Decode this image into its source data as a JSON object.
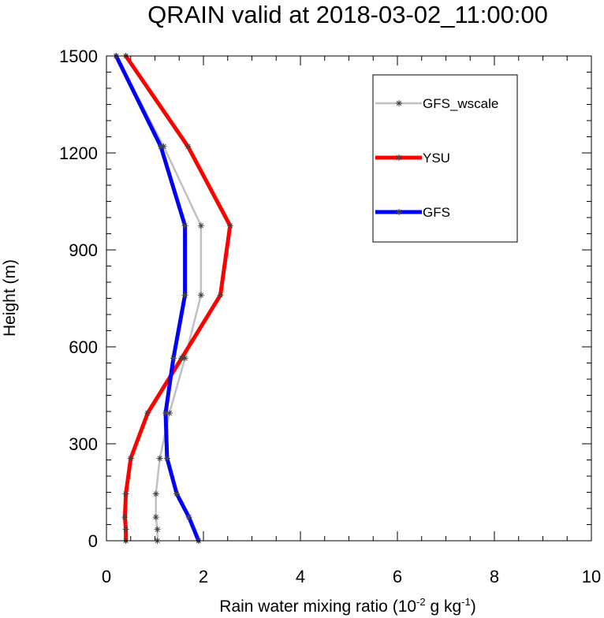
{
  "chart_data": {
    "type": "line",
    "title": "QRAIN valid at 2018-03-02_11:00:00",
    "xlabel": {
      "prefix": "Rain water mixing ratio (10",
      "exp1": "-2",
      "mid": " g kg",
      "exp2": "-1",
      "suffix": ")"
    },
    "ylabel": "Height (m)",
    "xlim": [
      0,
      10
    ],
    "ylim": [
      0,
      1500
    ],
    "xticks": [
      0,
      2,
      4,
      6,
      8,
      10
    ],
    "yticks": [
      0,
      300,
      600,
      900,
      1200,
      1500
    ],
    "xtick_labels": [
      "0",
      "2",
      "4",
      "6",
      "8",
      "10"
    ],
    "ytick_labels": [
      "0",
      "300",
      "600",
      "900",
      "1200",
      "1500"
    ],
    "legend_position": "top-right",
    "grid": false,
    "series": [
      {
        "name": "GFS_wscale",
        "color": "#c0c0c0",
        "points": [
          {
            "x": 1.05,
            "y": 0
          },
          {
            "x": 1.05,
            "y": 35
          },
          {
            "x": 1.02,
            "y": 73
          },
          {
            "x": 1.02,
            "y": 145
          },
          {
            "x": 1.1,
            "y": 255
          },
          {
            "x": 1.3,
            "y": 395
          },
          {
            "x": 1.62,
            "y": 565
          },
          {
            "x": 1.95,
            "y": 760
          },
          {
            "x": 1.95,
            "y": 975
          },
          {
            "x": 1.18,
            "y": 1220
          },
          {
            "x": 0.2,
            "y": 1500
          }
        ]
      },
      {
        "name": "YSU",
        "color": "#ff0000",
        "points": [
          {
            "x": 0.4,
            "y": 0
          },
          {
            "x": 0.4,
            "y": 35
          },
          {
            "x": 0.38,
            "y": 73
          },
          {
            "x": 0.4,
            "y": 145
          },
          {
            "x": 0.5,
            "y": 255
          },
          {
            "x": 0.85,
            "y": 395
          },
          {
            "x": 1.55,
            "y": 565
          },
          {
            "x": 2.35,
            "y": 760
          },
          {
            "x": 2.55,
            "y": 975
          },
          {
            "x": 1.68,
            "y": 1220
          },
          {
            "x": 0.4,
            "y": 1500
          }
        ]
      },
      {
        "name": "GFS",
        "color": "#0000ff",
        "points": [
          {
            "x": 1.9,
            "y": 0
          },
          {
            "x": 1.7,
            "y": 73
          },
          {
            "x": 1.45,
            "y": 145
          },
          {
            "x": 1.25,
            "y": 255
          },
          {
            "x": 1.22,
            "y": 395
          },
          {
            "x": 1.38,
            "y": 565
          },
          {
            "x": 1.62,
            "y": 760
          },
          {
            "x": 1.62,
            "y": 975
          },
          {
            "x": 1.12,
            "y": 1220
          },
          {
            "x": 0.2,
            "y": 1500
          }
        ]
      }
    ]
  }
}
